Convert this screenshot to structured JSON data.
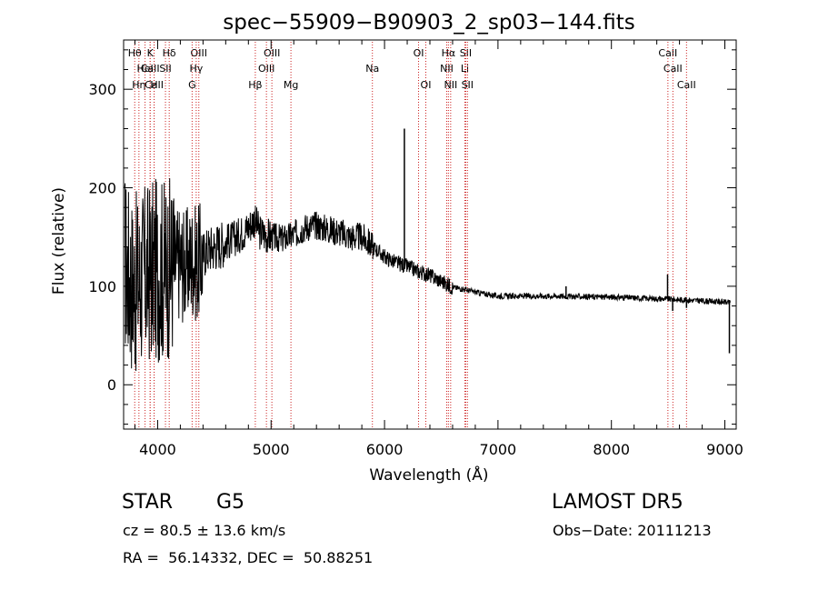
{
  "chart_data": {
    "type": "line",
    "title": "spec−55909−B90903_2_sp03−144.fits",
    "xlabel": "Wavelength (Å)",
    "ylabel": "Flux (relative)",
    "xlim": [
      3700,
      9100
    ],
    "ylim": [
      -45,
      350
    ],
    "x_ticks": [
      4000,
      5000,
      6000,
      7000,
      8000,
      9000
    ],
    "y_ticks": [
      0,
      100,
      200,
      300
    ],
    "grid": false,
    "line_color": "#000000",
    "marker_color": "#cc2222",
    "anchors": [
      [
        3700,
        130
      ],
      [
        3750,
        110
      ],
      [
        3800,
        100
      ],
      [
        3850,
        108
      ],
      [
        3900,
        112
      ],
      [
        3950,
        115
      ],
      [
        4000,
        117
      ],
      [
        4050,
        118
      ],
      [
        4100,
        118
      ],
      [
        4150,
        122
      ],
      [
        4200,
        125
      ],
      [
        4250,
        120
      ],
      [
        4300,
        128
      ],
      [
        4350,
        122
      ],
      [
        4400,
        132
      ],
      [
        4450,
        138
      ],
      [
        4500,
        140
      ],
      [
        4600,
        145
      ],
      [
        4700,
        150
      ],
      [
        4800,
        160
      ],
      [
        4850,
        168
      ],
      [
        4900,
        155
      ],
      [
        5000,
        150
      ],
      [
        5100,
        148
      ],
      [
        5200,
        152
      ],
      [
        5300,
        160
      ],
      [
        5400,
        162
      ],
      [
        5500,
        158
      ],
      [
        5600,
        155
      ],
      [
        5700,
        150
      ],
      [
        5800,
        150
      ],
      [
        5900,
        140
      ],
      [
        6000,
        130
      ],
      [
        6100,
        124
      ],
      [
        6200,
        120
      ],
      [
        6300,
        115
      ],
      [
        6400,
        111
      ],
      [
        6500,
        105
      ],
      [
        6600,
        99
      ],
      [
        6700,
        97
      ],
      [
        6800,
        94
      ],
      [
        7000,
        90
      ],
      [
        7500,
        90
      ],
      [
        8000,
        89
      ],
      [
        8500,
        87
      ],
      [
        9000,
        84
      ],
      [
        9050,
        83
      ]
    ],
    "spikes": [
      {
        "x": 6175,
        "y": 260
      },
      {
        "x": 7600,
        "y": 100
      },
      {
        "x": 8495,
        "y": 112
      },
      {
        "x": 8540,
        "y": 75
      },
      {
        "x": 8662,
        "y": 78
      },
      {
        "x": 9040,
        "y": 32
      }
    ],
    "line_markers": [
      {
        "label": "CaII",
        "wl": 3934,
        "row": 1
      },
      {
        "label": "CaII",
        "wl": 3969,
        "row": 2
      },
      {
        "label": "CaII",
        "wl": 8498,
        "row": 0
      },
      {
        "label": "CaII",
        "wl": 8542,
        "row": 1
      },
      {
        "label": "CaII",
        "wl": 8662,
        "row": 2
      },
      {
        "label": "Hθ",
        "wl": 3798,
        "row": 0
      },
      {
        "label": "Hη",
        "wl": 3835,
        "row": 2
      },
      {
        "label": "K",
        "wl": 3934,
        "row": 0
      },
      {
        "label": "HeI",
        "wl": 3889,
        "row": 1
      },
      {
        "label": "H",
        "wl": 3969,
        "row": 2
      },
      {
        "label": "Hδ",
        "wl": 4102,
        "row": 0
      },
      {
        "label": "SII",
        "wl": 4069,
        "row": 1
      },
      {
        "label": "OIII",
        "wl": 4363,
        "row": 0
      },
      {
        "label": "Hγ",
        "wl": 4340,
        "row": 1
      },
      {
        "label": "G",
        "wl": 4304,
        "row": 2
      },
      {
        "label": "Hβ",
        "wl": 4861,
        "row": 2
      },
      {
        "label": "OIII",
        "wl": 4959,
        "row": 1
      },
      {
        "label": "OIII",
        "wl": 5007,
        "row": 0
      },
      {
        "label": "Mg",
        "wl": 5175,
        "row": 2
      },
      {
        "label": "Na",
        "wl": 5893,
        "row": 1
      },
      {
        "label": "OI",
        "wl": 6300,
        "row": 0
      },
      {
        "label": "OI",
        "wl": 6364,
        "row": 2
      },
      {
        "label": "Hα",
        "wl": 6563,
        "row": 0
      },
      {
        "label": "NII",
        "wl": 6548,
        "row": 1
      },
      {
        "label": "NII",
        "wl": 6583,
        "row": 2
      },
      {
        "label": "SII",
        "wl": 6716,
        "row": 0
      },
      {
        "label": "Li",
        "wl": 6708,
        "row": 1
      },
      {
        "label": "SII",
        "wl": 6731,
        "row": 2
      }
    ]
  },
  "info": {
    "class": "STAR",
    "subclass": "G5",
    "survey": "LAMOST DR5",
    "cz": "cz = 80.5 ± 13.6 km/s",
    "obs_date": "Obs−Date: 20111213",
    "coords": "RA =  56.14332, DEC =  50.88251"
  }
}
